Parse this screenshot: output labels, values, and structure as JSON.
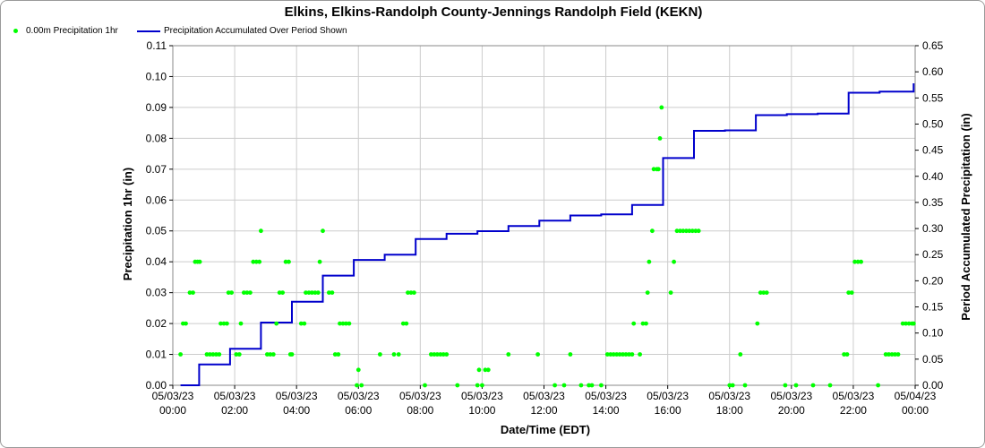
{
  "chart_data": {
    "type": "scatter+line",
    "title": "Elkins, Elkins-Randolph County-Jennings Randolph Field (KEKN)",
    "xlabel": "Date/Time (EDT)",
    "ylabel_left": "Precipitation 1hr (in)",
    "ylabel_right": "Period Accumulated Precipitation (in)",
    "ylim_left": [
      0,
      0.11
    ],
    "ylim_right": [
      0,
      0.65
    ],
    "grid": true,
    "legend_position": "top-left",
    "x_ticks": [
      {
        "h": 0,
        "date": "05/03/23",
        "time": "00:00"
      },
      {
        "h": 2,
        "date": "05/03/23",
        "time": "02:00"
      },
      {
        "h": 4,
        "date": "05/03/23",
        "time": "04:00"
      },
      {
        "h": 6,
        "date": "05/03/23",
        "time": "06:00"
      },
      {
        "h": 8,
        "date": "05/03/23",
        "time": "08:00"
      },
      {
        "h": 10,
        "date": "05/03/23",
        "time": "10:00"
      },
      {
        "h": 12,
        "date": "05/03/23",
        "time": "12:00"
      },
      {
        "h": 14,
        "date": "05/03/23",
        "time": "14:00"
      },
      {
        "h": 16,
        "date": "05/03/23",
        "time": "16:00"
      },
      {
        "h": 18,
        "date": "05/03/23",
        "time": "18:00"
      },
      {
        "h": 20,
        "date": "05/03/23",
        "time": "20:00"
      },
      {
        "h": 22,
        "date": "05/03/23",
        "time": "22:00"
      },
      {
        "h": 24,
        "date": "05/04/23",
        "time": "00:00"
      }
    ],
    "y_left_ticks": [
      "0.00",
      "0.01",
      "0.02",
      "0.03",
      "0.04",
      "0.05",
      "0.06",
      "0.07",
      "0.08",
      "0.09",
      "0.10",
      "0.11"
    ],
    "y_right_ticks": [
      "0.00",
      "0.05",
      "0.10",
      "0.15",
      "0.20",
      "0.25",
      "0.30",
      "0.35",
      "0.40",
      "0.45",
      "0.50",
      "0.55",
      "0.60",
      "0.65"
    ],
    "series": [
      {
        "name": "0.00m Precipitation 1hr",
        "kind": "scatter",
        "color": "#00ff00",
        "points": [
          [
            0.25,
            0.01
          ],
          [
            0.33,
            0.02
          ],
          [
            0.42,
            0.02
          ],
          [
            0.55,
            0.03
          ],
          [
            0.65,
            0.03
          ],
          [
            0.72,
            0.04
          ],
          [
            0.8,
            0.04
          ],
          [
            0.87,
            0.04
          ],
          [
            1.1,
            0.01
          ],
          [
            1.2,
            0.01
          ],
          [
            1.3,
            0.01
          ],
          [
            1.4,
            0.01
          ],
          [
            1.5,
            0.01
          ],
          [
            1.55,
            0.02
          ],
          [
            1.65,
            0.02
          ],
          [
            1.75,
            0.02
          ],
          [
            1.8,
            0.03
          ],
          [
            1.9,
            0.03
          ],
          [
            2.05,
            0.01
          ],
          [
            2.15,
            0.01
          ],
          [
            2.2,
            0.02
          ],
          [
            2.3,
            0.03
          ],
          [
            2.4,
            0.03
          ],
          [
            2.5,
            0.03
          ],
          [
            2.6,
            0.04
          ],
          [
            2.7,
            0.04
          ],
          [
            2.8,
            0.04
          ],
          [
            2.85,
            0.05
          ],
          [
            3.05,
            0.01
          ],
          [
            3.15,
            0.01
          ],
          [
            3.25,
            0.01
          ],
          [
            3.35,
            0.02
          ],
          [
            3.45,
            0.03
          ],
          [
            3.55,
            0.03
          ],
          [
            3.65,
            0.04
          ],
          [
            3.75,
            0.04
          ],
          [
            3.8,
            0.01
          ],
          [
            3.85,
            0.01
          ],
          [
            4.15,
            0.02
          ],
          [
            4.25,
            0.02
          ],
          [
            4.3,
            0.03
          ],
          [
            4.4,
            0.03
          ],
          [
            4.5,
            0.03
          ],
          [
            4.6,
            0.03
          ],
          [
            4.7,
            0.03
          ],
          [
            4.75,
            0.04
          ],
          [
            4.85,
            0.05
          ],
          [
            5.05,
            0.03
          ],
          [
            5.15,
            0.03
          ],
          [
            5.25,
            0.01
          ],
          [
            5.35,
            0.01
          ],
          [
            5.4,
            0.02
          ],
          [
            5.5,
            0.02
          ],
          [
            5.6,
            0.02
          ],
          [
            5.7,
            0.02
          ],
          [
            5.95,
            0.0
          ],
          [
            6.0,
            0.005
          ],
          [
            6.1,
            0.0
          ],
          [
            6.7,
            0.01
          ],
          [
            7.15,
            0.01
          ],
          [
            7.3,
            0.01
          ],
          [
            7.45,
            0.02
          ],
          [
            7.55,
            0.02
          ],
          [
            7.6,
            0.03
          ],
          [
            7.7,
            0.03
          ],
          [
            7.8,
            0.03
          ],
          [
            8.15,
            0.0
          ],
          [
            8.35,
            0.01
          ],
          [
            8.45,
            0.01
          ],
          [
            8.55,
            0.01
          ],
          [
            8.65,
            0.01
          ],
          [
            8.75,
            0.01
          ],
          [
            8.85,
            0.01
          ],
          [
            9.2,
            0.0
          ],
          [
            9.85,
            0.0
          ],
          [
            9.9,
            0.005
          ],
          [
            10.0,
            0.0
          ],
          [
            10.1,
            0.005
          ],
          [
            10.2,
            0.005
          ],
          [
            10.85,
            0.01
          ],
          [
            11.8,
            0.01
          ],
          [
            12.35,
            0.0
          ],
          [
            12.65,
            0.0
          ],
          [
            12.85,
            0.01
          ],
          [
            13.2,
            0.0
          ],
          [
            13.45,
            0.0
          ],
          [
            13.55,
            0.0
          ],
          [
            13.85,
            0.0
          ],
          [
            14.05,
            0.01
          ],
          [
            14.15,
            0.01
          ],
          [
            14.25,
            0.01
          ],
          [
            14.35,
            0.01
          ],
          [
            14.45,
            0.01
          ],
          [
            14.55,
            0.01
          ],
          [
            14.65,
            0.01
          ],
          [
            14.75,
            0.01
          ],
          [
            14.85,
            0.01
          ],
          [
            14.9,
            0.02
          ],
          [
            15.1,
            0.01
          ],
          [
            15.2,
            0.02
          ],
          [
            15.3,
            0.02
          ],
          [
            15.35,
            0.03
          ],
          [
            15.4,
            0.04
          ],
          [
            15.5,
            0.05
          ],
          [
            15.55,
            0.07
          ],
          [
            15.65,
            0.07
          ],
          [
            15.7,
            0.07
          ],
          [
            15.75,
            0.08
          ],
          [
            15.8,
            0.09
          ],
          [
            16.1,
            0.03
          ],
          [
            16.2,
            0.04
          ],
          [
            16.3,
            0.05
          ],
          [
            16.4,
            0.05
          ],
          [
            16.5,
            0.05
          ],
          [
            16.6,
            0.05
          ],
          [
            16.7,
            0.05
          ],
          [
            16.8,
            0.05
          ],
          [
            16.9,
            0.05
          ],
          [
            17.0,
            0.05
          ],
          [
            18.0,
            0.0
          ],
          [
            18.1,
            0.0
          ],
          [
            18.35,
            0.01
          ],
          [
            18.5,
            0.0
          ],
          [
            18.9,
            0.02
          ],
          [
            19.0,
            0.03
          ],
          [
            19.1,
            0.03
          ],
          [
            19.2,
            0.03
          ],
          [
            19.8,
            0.0
          ],
          [
            20.15,
            0.0
          ],
          [
            20.7,
            0.0
          ],
          [
            21.25,
            0.0
          ],
          [
            21.7,
            0.01
          ],
          [
            21.8,
            0.01
          ],
          [
            21.85,
            0.03
          ],
          [
            21.95,
            0.03
          ],
          [
            22.05,
            0.04
          ],
          [
            22.15,
            0.04
          ],
          [
            22.25,
            0.04
          ],
          [
            22.8,
            0.0
          ],
          [
            23.05,
            0.01
          ],
          [
            23.15,
            0.01
          ],
          [
            23.25,
            0.01
          ],
          [
            23.35,
            0.01
          ],
          [
            23.45,
            0.01
          ],
          [
            23.6,
            0.02
          ],
          [
            23.7,
            0.02
          ],
          [
            23.8,
            0.02
          ],
          [
            23.9,
            0.02
          ],
          [
            23.95,
            0.02
          ]
        ]
      },
      {
        "name": "Precipitation Accumulated Over Period Shown",
        "kind": "step-line",
        "color": "#0000cc",
        "points": [
          [
            0.25,
            0.0
          ],
          [
            0.85,
            0.0
          ],
          [
            0.85,
            0.04
          ],
          [
            1.85,
            0.04
          ],
          [
            1.85,
            0.07
          ],
          [
            2.85,
            0.07
          ],
          [
            2.85,
            0.12
          ],
          [
            3.85,
            0.12
          ],
          [
            3.85,
            0.16
          ],
          [
            4.85,
            0.16
          ],
          [
            4.85,
            0.21
          ],
          [
            5.85,
            0.21
          ],
          [
            5.85,
            0.24
          ],
          [
            6.85,
            0.24
          ],
          [
            6.85,
            0.25
          ],
          [
            7.85,
            0.25
          ],
          [
            7.85,
            0.28
          ],
          [
            8.85,
            0.28
          ],
          [
            8.85,
            0.29
          ],
          [
            9.85,
            0.29
          ],
          [
            9.85,
            0.295
          ],
          [
            10.85,
            0.295
          ],
          [
            10.85,
            0.305
          ],
          [
            11.85,
            0.305
          ],
          [
            11.85,
            0.315
          ],
          [
            12.85,
            0.315
          ],
          [
            12.85,
            0.325
          ],
          [
            13.85,
            0.325
          ],
          [
            13.85,
            0.327
          ],
          [
            14.85,
            0.327
          ],
          [
            14.85,
            0.345
          ],
          [
            15.85,
            0.345
          ],
          [
            15.85,
            0.435
          ],
          [
            16.85,
            0.435
          ],
          [
            16.85,
            0.487
          ],
          [
            17.85,
            0.487
          ],
          [
            17.85,
            0.488
          ],
          [
            18.85,
            0.488
          ],
          [
            18.85,
            0.517
          ],
          [
            19.85,
            0.517
          ],
          [
            19.85,
            0.519
          ],
          [
            20.85,
            0.519
          ],
          [
            20.85,
            0.52
          ],
          [
            21.85,
            0.52
          ],
          [
            21.85,
            0.56
          ],
          [
            22.85,
            0.56
          ],
          [
            22.85,
            0.562
          ],
          [
            23.95,
            0.562
          ],
          [
            23.95,
            0.578
          ]
        ]
      }
    ]
  },
  "legend": {
    "scatter_label": "0.00m Precipitation 1hr",
    "line_label": "Precipitation Accumulated Over Period Shown"
  }
}
